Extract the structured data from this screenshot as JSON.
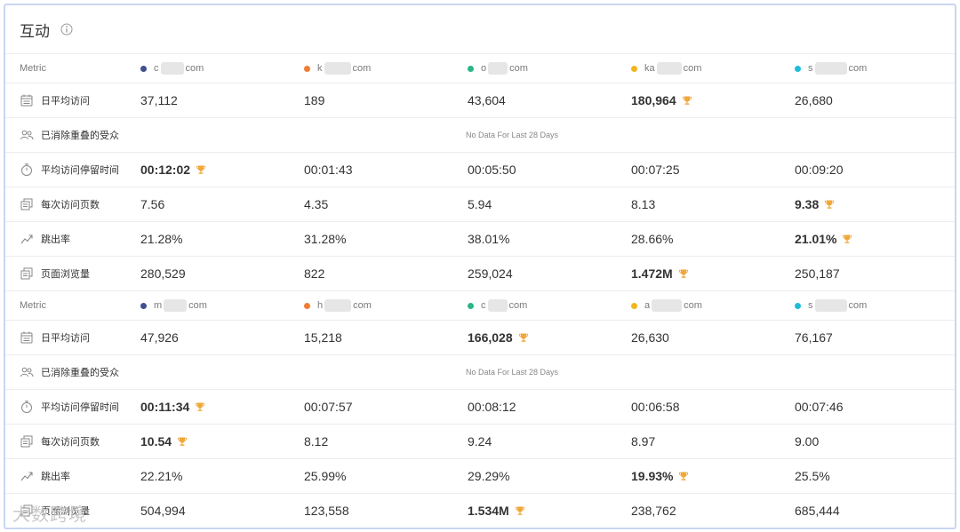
{
  "panel": {
    "title": "互动"
  },
  "no_data_text": "No Data For Last 28 Days",
  "watermark": "大数跨境",
  "colors": {
    "trophy": "#f0a83a"
  },
  "groups": [
    {
      "metric_label": "Metric",
      "sites": [
        {
          "prefix": "c",
          "suffix": "com",
          "color": "#3f4f8f"
        },
        {
          "prefix": "k",
          "suffix": "com",
          "color": "#f07d33"
        },
        {
          "prefix": "o",
          "suffix": "com",
          "color": "#2bb58a"
        },
        {
          "prefix": "ka",
          "suffix": "com",
          "color": "#f2b51c"
        },
        {
          "prefix": "s",
          "suffix": "com",
          "color": "#1fbcd8"
        }
      ],
      "rows": [
        {
          "label": "日平均访问",
          "icon": "calendar-icon",
          "values": [
            "37,112",
            "189",
            "43,604",
            "180,964",
            "26,680"
          ],
          "best": 3
        },
        {
          "label": "已消除重叠的受众",
          "icon": "audience-icon",
          "no_data": true
        },
        {
          "label": "平均访问停留时间",
          "icon": "timer-icon",
          "values": [
            "00:12:02",
            "00:01:43",
            "00:05:50",
            "00:07:25",
            "00:09:20"
          ],
          "best": 0
        },
        {
          "label": "每次访问页数",
          "icon": "pages-icon",
          "values": [
            "7.56",
            "4.35",
            "5.94",
            "8.13",
            "9.38"
          ],
          "best": 4
        },
        {
          "label": "跳出率",
          "icon": "trend-icon",
          "values": [
            "21.28%",
            "31.28%",
            "38.01%",
            "28.66%",
            "21.01%"
          ],
          "best": 4
        },
        {
          "label": "页面浏览量",
          "icon": "pageviews-icon",
          "values": [
            "280,529",
            "822",
            "259,024",
            "1.472M",
            "250,187"
          ],
          "best": 3
        }
      ]
    },
    {
      "metric_label": "Metric",
      "sites": [
        {
          "prefix": "m",
          "suffix": "com",
          "color": "#3f4f8f"
        },
        {
          "prefix": "h",
          "suffix": "com",
          "color": "#f07d33"
        },
        {
          "prefix": "c",
          "suffix": "com",
          "color": "#2bb58a"
        },
        {
          "prefix": "a",
          "suffix": "com",
          "color": "#f2b51c"
        },
        {
          "prefix": "s",
          "suffix": "com",
          "color": "#1fbcd8"
        }
      ],
      "rows": [
        {
          "label": "日平均访问",
          "icon": "calendar-icon",
          "values": [
            "47,926",
            "15,218",
            "166,028",
            "26,630",
            "76,167"
          ],
          "best": 2
        },
        {
          "label": "已消除重叠的受众",
          "icon": "audience-icon",
          "no_data": true
        },
        {
          "label": "平均访问停留时间",
          "icon": "timer-icon",
          "values": [
            "00:11:34",
            "00:07:57",
            "00:08:12",
            "00:06:58",
            "00:07:46"
          ],
          "best": 0
        },
        {
          "label": "每次访问页数",
          "icon": "pages-icon",
          "values": [
            "10.54",
            "8.12",
            "9.24",
            "8.97",
            "9.00"
          ],
          "best": 0
        },
        {
          "label": "跳出率",
          "icon": "trend-icon",
          "values": [
            "22.21%",
            "25.99%",
            "29.29%",
            "19.93%",
            "25.5%"
          ],
          "best": 3
        },
        {
          "label": "页面浏览量",
          "icon": "pageviews-icon",
          "values": [
            "504,994",
            "123,558",
            "1.534M",
            "238,762",
            "685,444"
          ],
          "best": 2
        }
      ]
    }
  ]
}
